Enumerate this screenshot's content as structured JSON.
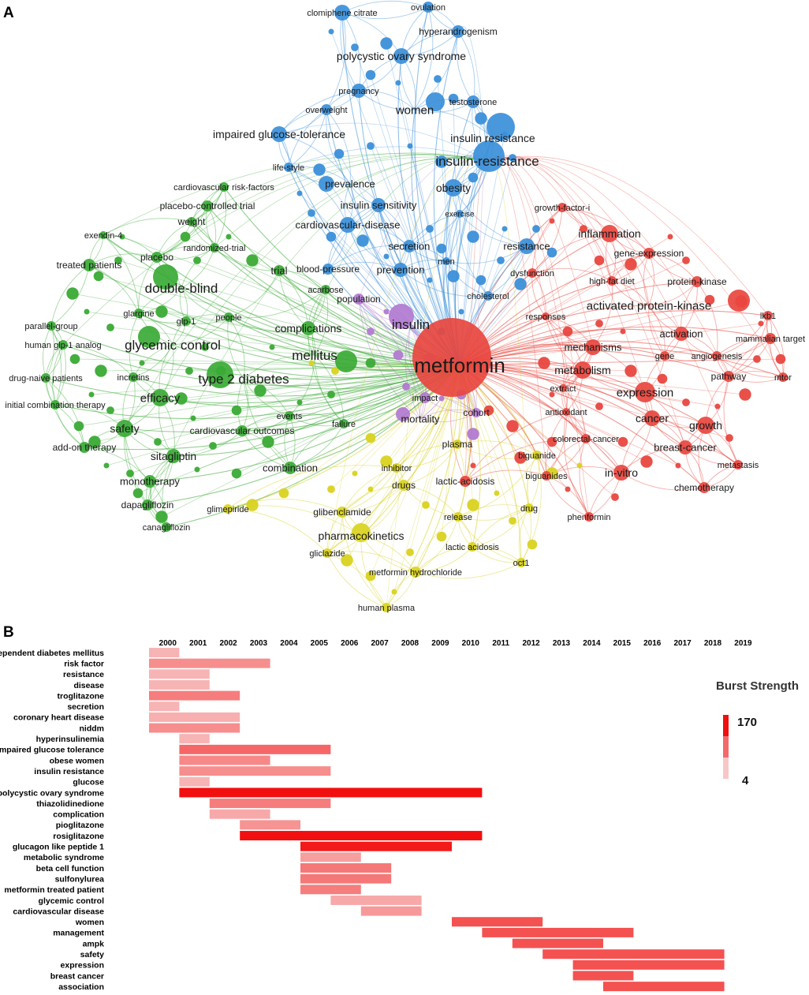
{
  "panel_labels": {
    "a": "A",
    "b": "B"
  },
  "network": {
    "clusters": [
      {
        "id": "green",
        "color": "#3aaa35"
      },
      {
        "id": "blue",
        "color": "#3b8fd9"
      },
      {
        "id": "red",
        "color": "#e8473f"
      },
      {
        "id": "yellow",
        "color": "#d9d21f"
      },
      {
        "id": "purple",
        "color": "#b27ad0"
      }
    ],
    "keywords": [
      {
        "text": "metformin",
        "cluster": "red"
      },
      {
        "text": "clomiphene citrate",
        "cluster": "blue"
      },
      {
        "text": "ovulation",
        "cluster": "blue"
      },
      {
        "text": "hyperandrogenism",
        "cluster": "blue"
      },
      {
        "text": "polycystic ovary syndrome",
        "cluster": "blue"
      },
      {
        "text": "pregnancy",
        "cluster": "blue"
      },
      {
        "text": "testosterone",
        "cluster": "blue"
      },
      {
        "text": "overweight",
        "cluster": "blue"
      },
      {
        "text": "women",
        "cluster": "blue"
      },
      {
        "text": "impaired glucose-tolerance",
        "cluster": "blue"
      },
      {
        "text": "insulin resistance",
        "cluster": "blue"
      },
      {
        "text": "insulin-resistance",
        "cluster": "blue"
      },
      {
        "text": "life-style",
        "cluster": "blue"
      },
      {
        "text": "cardiovascular risk-factors",
        "cluster": "green"
      },
      {
        "text": "prevalence",
        "cluster": "blue"
      },
      {
        "text": "obesity",
        "cluster": "blue"
      },
      {
        "text": "placebo-controlled trial",
        "cluster": "green"
      },
      {
        "text": "insulin sensitivity",
        "cluster": "blue"
      },
      {
        "text": "weight",
        "cluster": "green"
      },
      {
        "text": "exercise",
        "cluster": "blue"
      },
      {
        "text": "growth-factor-i",
        "cluster": "red"
      },
      {
        "text": "exendin-4",
        "cluster": "green"
      },
      {
        "text": "cardiovascular-disease",
        "cluster": "blue"
      },
      {
        "text": "inflammation",
        "cluster": "red"
      },
      {
        "text": "randomized-trial",
        "cluster": "green"
      },
      {
        "text": "secretion",
        "cluster": "blue"
      },
      {
        "text": "resistance",
        "cluster": "blue"
      },
      {
        "text": "placebo",
        "cluster": "green"
      },
      {
        "text": "gene-expression",
        "cluster": "red"
      },
      {
        "text": "treated patients",
        "cluster": "green"
      },
      {
        "text": "men",
        "cluster": "blue"
      },
      {
        "text": "trial",
        "cluster": "green"
      },
      {
        "text": "blood-pressure",
        "cluster": "blue"
      },
      {
        "text": "prevention",
        "cluster": "blue"
      },
      {
        "text": "dysfunction",
        "cluster": "red"
      },
      {
        "text": "acarbose",
        "cluster": "green"
      },
      {
        "text": "high-fat diet",
        "cluster": "red"
      },
      {
        "text": "protein-kinase",
        "cluster": "red"
      },
      {
        "text": "double-blind",
        "cluster": "green"
      },
      {
        "text": "population",
        "cluster": "purple"
      },
      {
        "text": "cholesterol",
        "cluster": "blue"
      },
      {
        "text": "activated protein-kinase",
        "cluster": "red"
      },
      {
        "text": "responses",
        "cluster": "red"
      },
      {
        "text": "glargine",
        "cluster": "green"
      },
      {
        "text": "people",
        "cluster": "green"
      },
      {
        "text": "lkb1",
        "cluster": "red"
      },
      {
        "text": "parallel-group",
        "cluster": "green"
      },
      {
        "text": "glp-1",
        "cluster": "green"
      },
      {
        "text": "complications",
        "cluster": "green"
      },
      {
        "text": "insulin",
        "cluster": "purple"
      },
      {
        "text": "mammalian target",
        "cluster": "red"
      },
      {
        "text": "human glp-1 analog",
        "cluster": "green"
      },
      {
        "text": "glycemic control",
        "cluster": "green"
      },
      {
        "text": "activation",
        "cluster": "red"
      },
      {
        "text": "mechanisms",
        "cluster": "red"
      },
      {
        "text": "mellitus",
        "cluster": "green"
      },
      {
        "text": "angiogenesis",
        "cluster": "red"
      },
      {
        "text": "gene",
        "cluster": "red"
      },
      {
        "text": "incretins",
        "cluster": "green"
      },
      {
        "text": "metabolism",
        "cluster": "red"
      },
      {
        "text": "pathway",
        "cluster": "red"
      },
      {
        "text": "drug-naive patients",
        "cluster": "green"
      },
      {
        "text": "type 2 diabetes",
        "cluster": "green"
      },
      {
        "text": "mtor",
        "cluster": "red"
      },
      {
        "text": "extract",
        "cluster": "red"
      },
      {
        "text": "expression",
        "cluster": "red"
      },
      {
        "text": "efficacy",
        "cluster": "green"
      },
      {
        "text": "impact",
        "cluster": "purple"
      },
      {
        "text": "initial combination therapy",
        "cluster": "green"
      },
      {
        "text": "cohort",
        "cluster": "purple"
      },
      {
        "text": "antioxidant",
        "cluster": "red"
      },
      {
        "text": "mortality",
        "cluster": "purple"
      },
      {
        "text": "cancer",
        "cluster": "red"
      },
      {
        "text": "events",
        "cluster": "green"
      },
      {
        "text": "failure",
        "cluster": "green"
      },
      {
        "text": "safety",
        "cluster": "green"
      },
      {
        "text": "growth",
        "cluster": "red"
      },
      {
        "text": "cardiovascular outcomes",
        "cluster": "green"
      },
      {
        "text": "colorectal-cancer",
        "cluster": "red"
      },
      {
        "text": "add-on therapy",
        "cluster": "green"
      },
      {
        "text": "plasma",
        "cluster": "yellow"
      },
      {
        "text": "breast-cancer",
        "cluster": "red"
      },
      {
        "text": "biguanide",
        "cluster": "yellow"
      },
      {
        "text": "sitagliptin",
        "cluster": "green"
      },
      {
        "text": "metastasis",
        "cluster": "red"
      },
      {
        "text": "combination",
        "cluster": "green"
      },
      {
        "text": "inhibitor",
        "cluster": "yellow"
      },
      {
        "text": "biguanides",
        "cluster": "red"
      },
      {
        "text": "in-vitro",
        "cluster": "red"
      },
      {
        "text": "monotherapy",
        "cluster": "green"
      },
      {
        "text": "lactic-acidosis",
        "cluster": "red"
      },
      {
        "text": "drugs",
        "cluster": "yellow"
      },
      {
        "text": "chemotherapy",
        "cluster": "red"
      },
      {
        "text": "dapagliflozin",
        "cluster": "green"
      },
      {
        "text": "glimepiride",
        "cluster": "yellow"
      },
      {
        "text": "glibenclamide",
        "cluster": "yellow"
      },
      {
        "text": "drug",
        "cluster": "yellow"
      },
      {
        "text": "canagliflozin",
        "cluster": "green"
      },
      {
        "text": "release",
        "cluster": "yellow"
      },
      {
        "text": "phenformin",
        "cluster": "red"
      },
      {
        "text": "pharmacokinetics",
        "cluster": "yellow"
      },
      {
        "text": "lactic acidosis",
        "cluster": "yellow"
      },
      {
        "text": "gliclazide",
        "cluster": "yellow"
      },
      {
        "text": "oct1",
        "cluster": "yellow"
      },
      {
        "text": "metformin hydrochloride",
        "cluster": "yellow"
      },
      {
        "text": "human plasma",
        "cluster": "yellow"
      }
    ]
  },
  "chart_data": {
    "type": "burst-timeline",
    "years": [
      2000,
      2001,
      2002,
      2003,
      2004,
      2005,
      2006,
      2007,
      2008,
      2009,
      2010,
      2011,
      2012,
      2013,
      2014,
      2015,
      2016,
      2017,
      2018,
      2019
    ],
    "legend": {
      "title": "Burst Strength",
      "max": 170,
      "min": 4
    },
    "colors": {
      "max": "#f20f0f",
      "mid": "#f36a6a",
      "min": "#f8c6c6"
    },
    "bursts": [
      {
        "keyword": "dependent diabetes mellitus",
        "begin": 2000,
        "end": 2001,
        "strength": 20
      },
      {
        "keyword": "risk factor",
        "begin": 2000,
        "end": 2004,
        "strength": 55
      },
      {
        "keyword": "resistance",
        "begin": 2000,
        "end": 2002,
        "strength": 20
      },
      {
        "keyword": "disease",
        "begin": 2000,
        "end": 2002,
        "strength": 20
      },
      {
        "keyword": "troglitazone",
        "begin": 2000,
        "end": 2003,
        "strength": 70
      },
      {
        "keyword": "secretion",
        "begin": 2000,
        "end": 2001,
        "strength": 20
      },
      {
        "keyword": "coronary heart disease",
        "begin": 2000,
        "end": 2003,
        "strength": 25
      },
      {
        "keyword": "niddm",
        "begin": 2000,
        "end": 2003,
        "strength": 55
      },
      {
        "keyword": "hyperinsulinemia",
        "begin": 2001,
        "end": 2002,
        "strength": 20
      },
      {
        "keyword": "impaired glucose tolerance",
        "begin": 2001,
        "end": 2006,
        "strength": 90
      },
      {
        "keyword": "obese women",
        "begin": 2001,
        "end": 2004,
        "strength": 60
      },
      {
        "keyword": "insulin resistance",
        "begin": 2001,
        "end": 2006,
        "strength": 55
      },
      {
        "keyword": "glucose",
        "begin": 2001,
        "end": 2002,
        "strength": 20
      },
      {
        "keyword": "polycystic ovary syndrome",
        "begin": 2001,
        "end": 2011,
        "strength": 170
      },
      {
        "keyword": "thiazolidinedione",
        "begin": 2002,
        "end": 2006,
        "strength": 70
      },
      {
        "keyword": "complication",
        "begin": 2002,
        "end": 2004,
        "strength": 30
      },
      {
        "keyword": "pioglitazone",
        "begin": 2003,
        "end": 2005,
        "strength": 50
      },
      {
        "keyword": "rosiglitazone",
        "begin": 2003,
        "end": 2011,
        "strength": 170
      },
      {
        "keyword": "glucagon like peptide 1",
        "begin": 2005,
        "end": 2010,
        "strength": 160
      },
      {
        "keyword": "metabolic syndrome",
        "begin": 2005,
        "end": 2007,
        "strength": 40
      },
      {
        "keyword": "beta cell function",
        "begin": 2005,
        "end": 2008,
        "strength": 75
      },
      {
        "keyword": "sulfonylurea",
        "begin": 2005,
        "end": 2008,
        "strength": 75
      },
      {
        "keyword": "metformin treated patient",
        "begin": 2005,
        "end": 2007,
        "strength": 70
      },
      {
        "keyword": "glycemic control",
        "begin": 2006,
        "end": 2009,
        "strength": 30
      },
      {
        "keyword": "cardiovascular disease",
        "begin": 2007,
        "end": 2009,
        "strength": 45
      },
      {
        "keyword": "women",
        "begin": 2010,
        "end": 2013,
        "strength": 110
      },
      {
        "keyword": "management",
        "begin": 2011,
        "end": 2016,
        "strength": 110
      },
      {
        "keyword": "ampk",
        "begin": 2012,
        "end": 2015,
        "strength": 110
      },
      {
        "keyword": "safety",
        "begin": 2013,
        "end": 2019,
        "strength": 110
      },
      {
        "keyword": "expression",
        "begin": 2014,
        "end": 2019,
        "strength": 110
      },
      {
        "keyword": "breast cancer",
        "begin": 2014,
        "end": 2016,
        "strength": 110
      },
      {
        "keyword": "association",
        "begin": 2015,
        "end": 2019,
        "strength": 110
      }
    ]
  }
}
